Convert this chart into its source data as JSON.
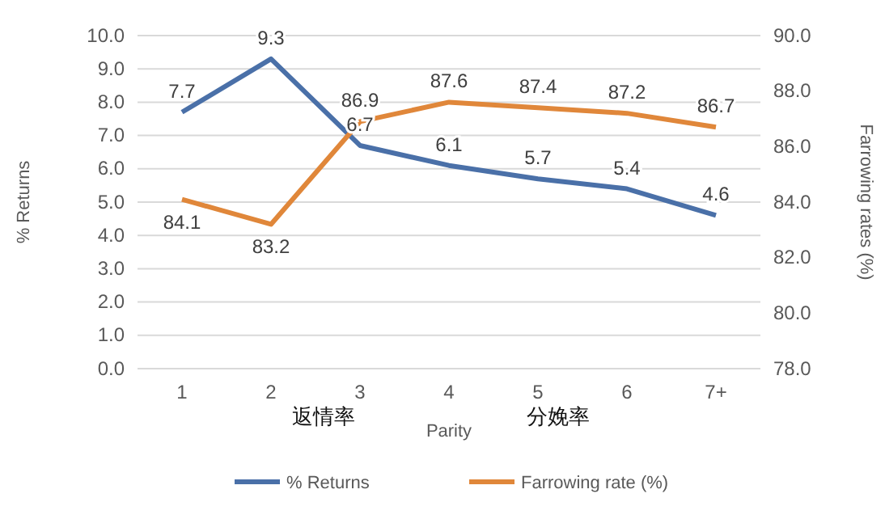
{
  "chart_data": {
    "type": "line",
    "categories": [
      "1",
      "2",
      "3",
      "4",
      "5",
      "6",
      "7+"
    ],
    "series": [
      {
        "name": "% Returns",
        "color": "#4a70a8",
        "values": [
          7.7,
          9.3,
          6.7,
          6.1,
          5.7,
          5.4,
          4.6
        ]
      },
      {
        "name": "Farrowing rate (%)",
        "color": "#e0873a",
        "values": [
          84.1,
          83.2,
          86.9,
          87.6,
          87.4,
          87.2,
          86.7
        ],
        "axis": "y2"
      }
    ],
    "xlabel": "Parity",
    "ylabel": "% Returns",
    "y2label": "Farrowing rates (%)",
    "ylim": [
      0,
      10
    ],
    "yticks": [
      {
        "value": 0,
        "label": "0.0"
      },
      {
        "value": 1,
        "label": "1.0"
      },
      {
        "value": 2,
        "label": "2.0"
      },
      {
        "value": 3,
        "label": "3.0"
      },
      {
        "value": 4,
        "label": "4.0"
      },
      {
        "value": 5,
        "label": "5.0"
      },
      {
        "value": 6,
        "label": "6.0"
      },
      {
        "value": 7,
        "label": "7.0"
      },
      {
        "value": 8,
        "label": "8.0"
      },
      {
        "value": 9,
        "label": "9.0"
      },
      {
        "value": 10,
        "label": "10.0"
      }
    ],
    "y2lim": [
      78,
      90
    ],
    "y2ticks": [
      {
        "value": 78,
        "label": "78.0"
      },
      {
        "value": 80,
        "label": "80.0"
      },
      {
        "value": 82,
        "label": "82.0"
      },
      {
        "value": 84,
        "label": "84.0"
      },
      {
        "value": 86,
        "label": "86.0"
      },
      {
        "value": 88,
        "label": "88.0"
      },
      {
        "value": 90,
        "label": "90.0"
      }
    ],
    "grid": "y",
    "legend": "bottom",
    "data_labels": true,
    "marker": "none",
    "line_style": "solid",
    "annotations": [
      "返情率",
      "分娩率"
    ]
  }
}
